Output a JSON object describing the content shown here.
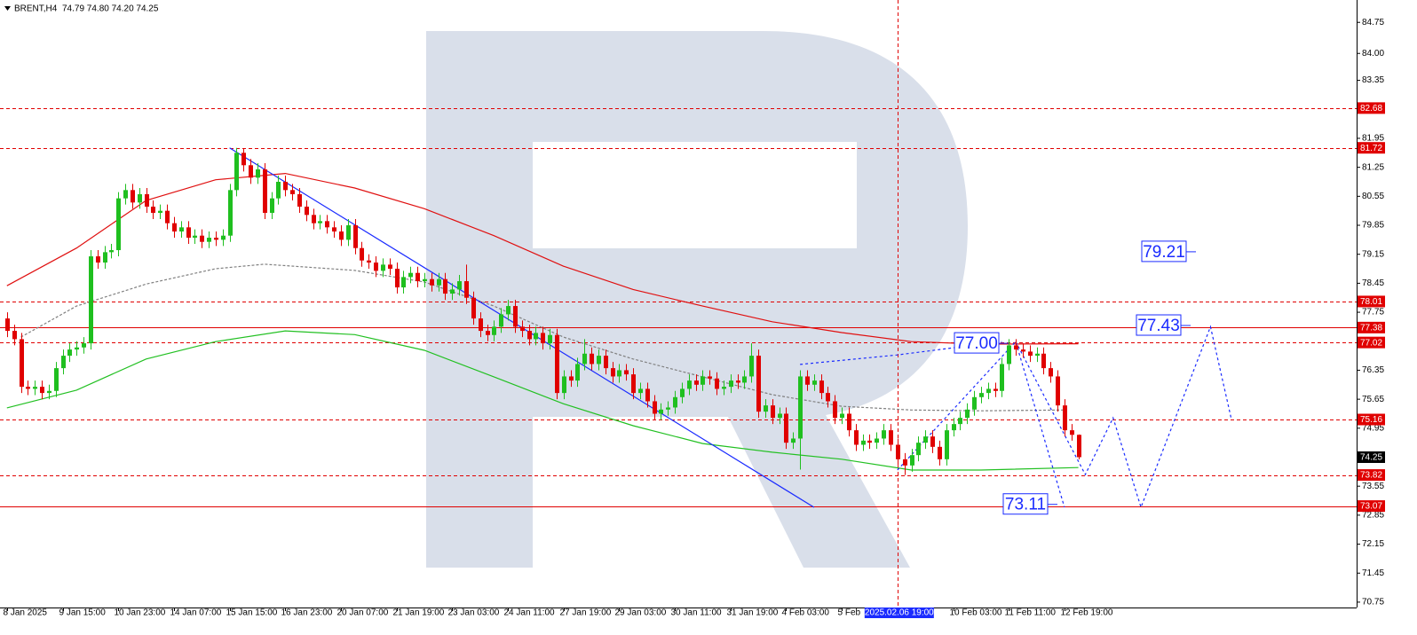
{
  "chart_data": {
    "type": "candlestick",
    "title": "BRENT,H4",
    "header_values": "74.79 74.80 74.20 74.25",
    "xlim": [
      -1,
      194
    ],
    "ylim": [
      70.62,
      85.29
    ],
    "yticks": [
      84.75,
      {
        "value": 84,
        "label": "84.00"
      },
      83.35,
      81.95,
      81.25,
      80.55,
      79.85,
      79.15,
      78.45,
      77.75,
      76.35,
      75.65,
      74.95,
      73.55,
      72.85,
      72.15,
      71.45,
      70.75
    ],
    "xticks": [
      {
        "value": 0,
        "label": "8 Jan 2025"
      },
      {
        "value": 8,
        "label": "9 Jan 15:00"
      },
      {
        "value": 16,
        "label": "10 Jan 23:00"
      },
      {
        "value": 24,
        "label": "14 Jan 07:00"
      },
      {
        "value": 32,
        "label": "15 Jan 15:00"
      },
      {
        "value": 40,
        "label": "16 Jan 23:00"
      },
      {
        "value": 48,
        "label": "20 Jan 07:00"
      },
      {
        "value": 56,
        "label": "21 Jan 19:00"
      },
      {
        "value": 64,
        "label": "23 Jan 03:00"
      },
      {
        "value": 72,
        "label": "24 Jan 11:00"
      },
      {
        "value": 80,
        "label": "27 Jan 19:00"
      },
      {
        "value": 88,
        "label": "29 Jan 03:00"
      },
      {
        "value": 96,
        "label": "30 Jan 11:00"
      },
      {
        "value": 104,
        "label": "31 Jan 19:00"
      },
      {
        "value": 112,
        "label": "4 Feb 03:00"
      },
      {
        "value": 120,
        "label": "5 Feb"
      },
      {
        "value": 136,
        "label": "10 Feb 03:00"
      },
      {
        "value": 144,
        "label": "11 Feb 11:00"
      },
      {
        "value": 152,
        "label": "12 Feb 19:00"
      }
    ],
    "colors": {
      "up": "#1fbf1f",
      "down": "#e00000"
    },
    "ohlc": [
      [
        77.6,
        77.75,
        77.15,
        77.3
      ],
      [
        77.3,
        77.45,
        76.95,
        77.1
      ],
      [
        77.1,
        77.25,
        75.8,
        75.95
      ],
      [
        75.95,
        76.1,
        75.75,
        75.9
      ],
      [
        75.9,
        76.1,
        75.75,
        75.95
      ],
      [
        75.95,
        76.1,
        75.65,
        75.8
      ],
      [
        75.8,
        76.0,
        75.65,
        75.85
      ],
      [
        75.85,
        76.55,
        75.7,
        76.4
      ],
      [
        76.4,
        76.85,
        76.25,
        76.7
      ],
      [
        76.7,
        77.0,
        76.55,
        76.85
      ],
      [
        76.85,
        77.05,
        76.7,
        76.9
      ],
      [
        76.9,
        77.15,
        76.75,
        77.0
      ],
      [
        77.0,
        79.25,
        76.85,
        79.1
      ],
      [
        79.1,
        79.25,
        78.8,
        78.95
      ],
      [
        78.95,
        79.35,
        78.8,
        79.2
      ],
      [
        79.2,
        79.4,
        79.05,
        79.25
      ],
      [
        79.25,
        80.65,
        79.1,
        80.5
      ],
      [
        80.5,
        80.85,
        80.35,
        80.7
      ],
      [
        80.7,
        80.85,
        80.25,
        80.4
      ],
      [
        80.4,
        80.75,
        80.25,
        80.6
      ],
      [
        80.6,
        80.75,
        80.15,
        80.3
      ],
      [
        80.3,
        80.45,
        80.0,
        80.15
      ],
      [
        80.15,
        80.35,
        80.0,
        80.2
      ],
      [
        80.2,
        80.35,
        79.75,
        79.9
      ],
      [
        79.9,
        80.05,
        79.55,
        79.7
      ],
      [
        79.7,
        79.95,
        79.55,
        79.8
      ],
      [
        79.8,
        79.95,
        79.4,
        79.55
      ],
      [
        79.55,
        79.75,
        79.4,
        79.6
      ],
      [
        79.6,
        79.75,
        79.3,
        79.45
      ],
      [
        79.45,
        79.7,
        79.3,
        79.55
      ],
      [
        79.55,
        79.7,
        79.35,
        79.5
      ],
      [
        79.5,
        79.75,
        79.35,
        79.6
      ],
      [
        79.6,
        80.85,
        79.45,
        80.7
      ],
      [
        80.7,
        81.72,
        80.55,
        81.6
      ],
      [
        81.6,
        81.7,
        81.15,
        81.3
      ],
      [
        81.3,
        81.45,
        80.85,
        81.0
      ],
      [
        81.0,
        81.35,
        80.85,
        81.2
      ],
      [
        81.2,
        81.35,
        80.0,
        80.15
      ],
      [
        80.15,
        80.65,
        80.0,
        80.5
      ],
      [
        80.5,
        81.05,
        80.35,
        80.9
      ],
      [
        80.9,
        81.05,
        80.55,
        80.7
      ],
      [
        80.7,
        80.85,
        80.45,
        80.6
      ],
      [
        80.6,
        80.75,
        80.15,
        80.3
      ],
      [
        80.3,
        80.45,
        79.95,
        80.1
      ],
      [
        80.1,
        80.25,
        79.75,
        79.9
      ],
      [
        79.9,
        80.1,
        79.75,
        79.95
      ],
      [
        79.95,
        80.1,
        79.65,
        79.8
      ],
      [
        79.8,
        79.95,
        79.55,
        79.7
      ],
      [
        79.7,
        79.85,
        79.35,
        79.5
      ],
      [
        79.5,
        80.0,
        79.35,
        79.85
      ],
      [
        79.85,
        80.0,
        79.15,
        79.3
      ],
      [
        79.3,
        79.45,
        78.85,
        79.0
      ],
      [
        79.0,
        79.15,
        78.8,
        78.95
      ],
      [
        78.95,
        79.1,
        78.6,
        78.75
      ],
      [
        78.75,
        79.05,
        78.6,
        78.9
      ],
      [
        78.9,
        79.05,
        78.65,
        78.8
      ],
      [
        78.8,
        78.95,
        78.2,
        78.35
      ],
      [
        78.35,
        78.75,
        78.2,
        78.6
      ],
      [
        78.6,
        78.85,
        78.45,
        78.7
      ],
      [
        78.7,
        78.85,
        78.35,
        78.5
      ],
      [
        78.5,
        78.7,
        78.35,
        78.55
      ],
      [
        78.55,
        78.7,
        78.25,
        78.4
      ],
      [
        78.4,
        78.7,
        78.25,
        78.55
      ],
      [
        78.55,
        78.7,
        78.05,
        78.2
      ],
      [
        78.2,
        78.45,
        78.05,
        78.3
      ],
      [
        78.3,
        78.65,
        78.15,
        78.5
      ],
      [
        78.5,
        78.9,
        77.95,
        78.1
      ],
      [
        78.1,
        78.25,
        77.45,
        77.6
      ],
      [
        77.6,
        77.75,
        77.15,
        77.3
      ],
      [
        77.3,
        77.45,
        77.05,
        77.2
      ],
      [
        77.2,
        77.55,
        77.05,
        77.4
      ],
      [
        77.4,
        77.85,
        77.25,
        77.7
      ],
      [
        77.7,
        78.05,
        77.55,
        77.9
      ],
      [
        77.9,
        78.05,
        77.25,
        77.4
      ],
      [
        77.4,
        77.55,
        77.15,
        77.3
      ],
      [
        77.3,
        77.45,
        76.95,
        77.1
      ],
      [
        77.1,
        77.4,
        76.95,
        77.25
      ],
      [
        77.25,
        77.4,
        76.85,
        77.0
      ],
      [
        77.0,
        77.35,
        76.85,
        77.2
      ],
      [
        77.2,
        77.35,
        75.65,
        75.8
      ],
      [
        75.8,
        76.35,
        75.65,
        76.2
      ],
      [
        76.2,
        76.35,
        75.95,
        76.1
      ],
      [
        76.1,
        76.65,
        75.95,
        76.5
      ],
      [
        76.5,
        77.1,
        76.35,
        76.75
      ],
      [
        76.75,
        76.9,
        76.35,
        76.5
      ],
      [
        76.5,
        76.85,
        76.35,
        76.7
      ],
      [
        76.7,
        76.85,
        76.25,
        76.4
      ],
      [
        76.4,
        76.55,
        76.05,
        76.2
      ],
      [
        76.2,
        76.5,
        76.05,
        76.35
      ],
      [
        76.35,
        76.5,
        76.1,
        76.25
      ],
      [
        76.25,
        76.4,
        75.65,
        75.8
      ],
      [
        75.8,
        76.05,
        75.65,
        75.9
      ],
      [
        75.9,
        76.05,
        75.45,
        75.6
      ],
      [
        75.6,
        75.75,
        75.15,
        75.3
      ],
      [
        75.3,
        75.55,
        75.15,
        75.4
      ],
      [
        75.4,
        75.6,
        75.25,
        75.45
      ],
      [
        75.45,
        75.85,
        75.3,
        75.7
      ],
      [
        75.7,
        76.05,
        75.55,
        75.9
      ],
      [
        75.9,
        76.25,
        75.75,
        76.1
      ],
      [
        76.1,
        76.25,
        75.85,
        76.0
      ],
      [
        76.0,
        76.35,
        75.85,
        76.2
      ],
      [
        76.2,
        76.35,
        76.0,
        76.15
      ],
      [
        76.15,
        76.3,
        75.75,
        75.9
      ],
      [
        75.9,
        76.1,
        75.75,
        75.95
      ],
      [
        75.95,
        76.25,
        75.8,
        76.1
      ],
      [
        76.1,
        76.25,
        75.9,
        76.05
      ],
      [
        76.05,
        76.35,
        75.9,
        76.2
      ],
      [
        76.2,
        77.0,
        76.05,
        76.7
      ],
      [
        76.7,
        76.85,
        75.2,
        75.35
      ],
      [
        75.35,
        75.65,
        75.2,
        75.5
      ],
      [
        75.5,
        75.65,
        75.05,
        75.2
      ],
      [
        75.2,
        75.45,
        75.05,
        75.3
      ],
      [
        75.3,
        75.45,
        74.45,
        74.6
      ],
      [
        74.6,
        74.85,
        74.45,
        74.7
      ],
      [
        74.7,
        76.35,
        73.95,
        76.2
      ],
      [
        76.2,
        76.35,
        75.85,
        76.0
      ],
      [
        76.0,
        76.25,
        75.85,
        76.1
      ],
      [
        76.1,
        76.25,
        75.65,
        75.8
      ],
      [
        75.8,
        75.95,
        75.45,
        75.6
      ],
      [
        75.6,
        75.75,
        75.05,
        75.2
      ],
      [
        75.2,
        75.45,
        75.05,
        75.3
      ],
      [
        75.3,
        75.45,
        74.75,
        74.9
      ],
      [
        74.9,
        75.05,
        74.4,
        74.55
      ],
      [
        74.55,
        74.8,
        74.4,
        74.65
      ],
      [
        74.65,
        74.8,
        74.45,
        74.6
      ],
      [
        74.6,
        74.85,
        74.45,
        74.7
      ],
      [
        74.7,
        75.05,
        74.55,
        74.9
      ],
      [
        74.9,
        75.05,
        74.4,
        74.55
      ],
      [
        74.55,
        74.7,
        74.05,
        74.2
      ],
      [
        74.2,
        74.35,
        73.82,
        74.05
      ],
      [
        74.05,
        74.45,
        73.9,
        74.3
      ],
      [
        74.3,
        74.75,
        74.15,
        74.6
      ],
      [
        74.6,
        74.9,
        74.45,
        74.75
      ],
      [
        74.75,
        74.9,
        74.35,
        74.5
      ],
      [
        74.5,
        74.65,
        74.05,
        74.2
      ],
      [
        74.2,
        75.05,
        74.05,
        74.9
      ],
      [
        74.9,
        75.2,
        74.75,
        75.05
      ],
      [
        75.05,
        75.35,
        74.9,
        75.2
      ],
      [
        75.2,
        75.55,
        75.05,
        75.4
      ],
      [
        75.4,
        75.85,
        75.25,
        75.7
      ],
      [
        75.7,
        75.95,
        75.55,
        75.8
      ],
      [
        75.8,
        76.05,
        75.65,
        75.9
      ],
      [
        75.9,
        76.05,
        75.7,
        75.85
      ],
      [
        75.85,
        76.65,
        75.7,
        76.5
      ],
      [
        76.5,
        77.1,
        76.35,
        76.95
      ],
      [
        76.95,
        77.1,
        76.7,
        76.85
      ],
      [
        76.85,
        77.0,
        76.65,
        76.8
      ],
      [
        76.8,
        76.95,
        76.55,
        76.7
      ],
      [
        76.7,
        76.9,
        76.55,
        76.75
      ],
      [
        76.75,
        76.9,
        76.25,
        76.4
      ],
      [
        76.4,
        76.55,
        76.05,
        76.2
      ],
      [
        76.2,
        76.35,
        75.35,
        75.5
      ],
      [
        75.5,
        75.65,
        74.75,
        74.9
      ],
      [
        74.9,
        75.05,
        74.65,
        74.79
      ],
      [
        74.79,
        74.8,
        74.2,
        74.25
      ]
    ],
    "lines": [
      {
        "color": "#e01010",
        "dash": "none",
        "x": [
          0,
          10,
          20,
          30,
          40,
          50,
          60,
          70,
          80,
          90,
          100,
          110,
          120,
          130,
          140,
          154
        ],
        "values": [
          78.39,
          79.3,
          80.45,
          80.95,
          81.1,
          80.75,
          80.25,
          79.6,
          78.86,
          78.3,
          77.9,
          77.52,
          77.26,
          77.04,
          76.98,
          76.99
        ]
      },
      {
        "color": "#808080",
        "dash": "3 2",
        "x": [
          2,
          10,
          20,
          30,
          37,
          50,
          60,
          70,
          80,
          90,
          100,
          110,
          120,
          130,
          140,
          152
        ],
        "values": [
          77.15,
          77.9,
          78.43,
          78.8,
          78.91,
          78.76,
          78.48,
          77.9,
          77.15,
          76.62,
          76.19,
          75.76,
          75.48,
          75.39,
          75.37,
          75.39
        ]
      },
      {
        "color": "#22c022",
        "dash": "none",
        "x": [
          0,
          10,
          20,
          30,
          40,
          50,
          60,
          70,
          80,
          90,
          100,
          110,
          120,
          130,
          140,
          154
        ],
        "values": [
          75.44,
          75.87,
          76.62,
          77.04,
          77.3,
          77.21,
          76.83,
          76.19,
          75.54,
          75.01,
          74.58,
          74.37,
          74.2,
          73.94,
          73.94,
          74.0
        ]
      },
      {
        "color": "#1a2bff",
        "dash": "none",
        "x": [
          32,
          116
        ],
        "values": [
          81.72,
          73.04
        ]
      },
      {
        "color": "#1a2bff",
        "dash": "3 3",
        "x": [
          114,
          128,
          143
        ],
        "values": [
          76.49,
          76.72,
          77.04
        ]
      },
      {
        "color": "#1a2bff",
        "dash": "3 3",
        "x": [
          128,
          145,
          152
        ],
        "values": [
          73.94,
          77.04,
          73.04
        ]
      },
      {
        "color": "#1a2bff",
        "dash": "3 3",
        "x": [
          145,
          155,
          159,
          163,
          173,
          176
        ],
        "values": [
          77.04,
          73.83,
          75.2,
          73.04,
          77.4,
          75.16
        ]
      }
    ],
    "levels": [
      {
        "value": 82.68,
        "style": "dashed",
        "color": "#e00000"
      },
      {
        "value": 81.72,
        "style": "dashed",
        "color": "#e00000"
      },
      {
        "value": 78.01,
        "style": "dashed",
        "color": "#e00000"
      },
      {
        "value": 77.38,
        "style": "solid",
        "color": "#e00000"
      },
      {
        "value": 77.02,
        "style": "dashed",
        "color": "#e00000"
      },
      {
        "value": 75.16,
        "style": "dashed",
        "color": "#e00000"
      },
      {
        "value": 73.82,
        "style": "dashed",
        "color": "#e00000"
      },
      {
        "value": 73.07,
        "style": "solid",
        "color": "#e00000"
      }
    ],
    "current_price": 74.25,
    "crosshair": {
      "x": 128,
      "label": "2025.02.06 19:00"
    },
    "annotations": [
      {
        "value": 79.21
      },
      {
        "value": 77.43
      },
      {
        "value": 77,
        "label": "77.00"
      },
      {
        "value": 73.11
      }
    ]
  }
}
